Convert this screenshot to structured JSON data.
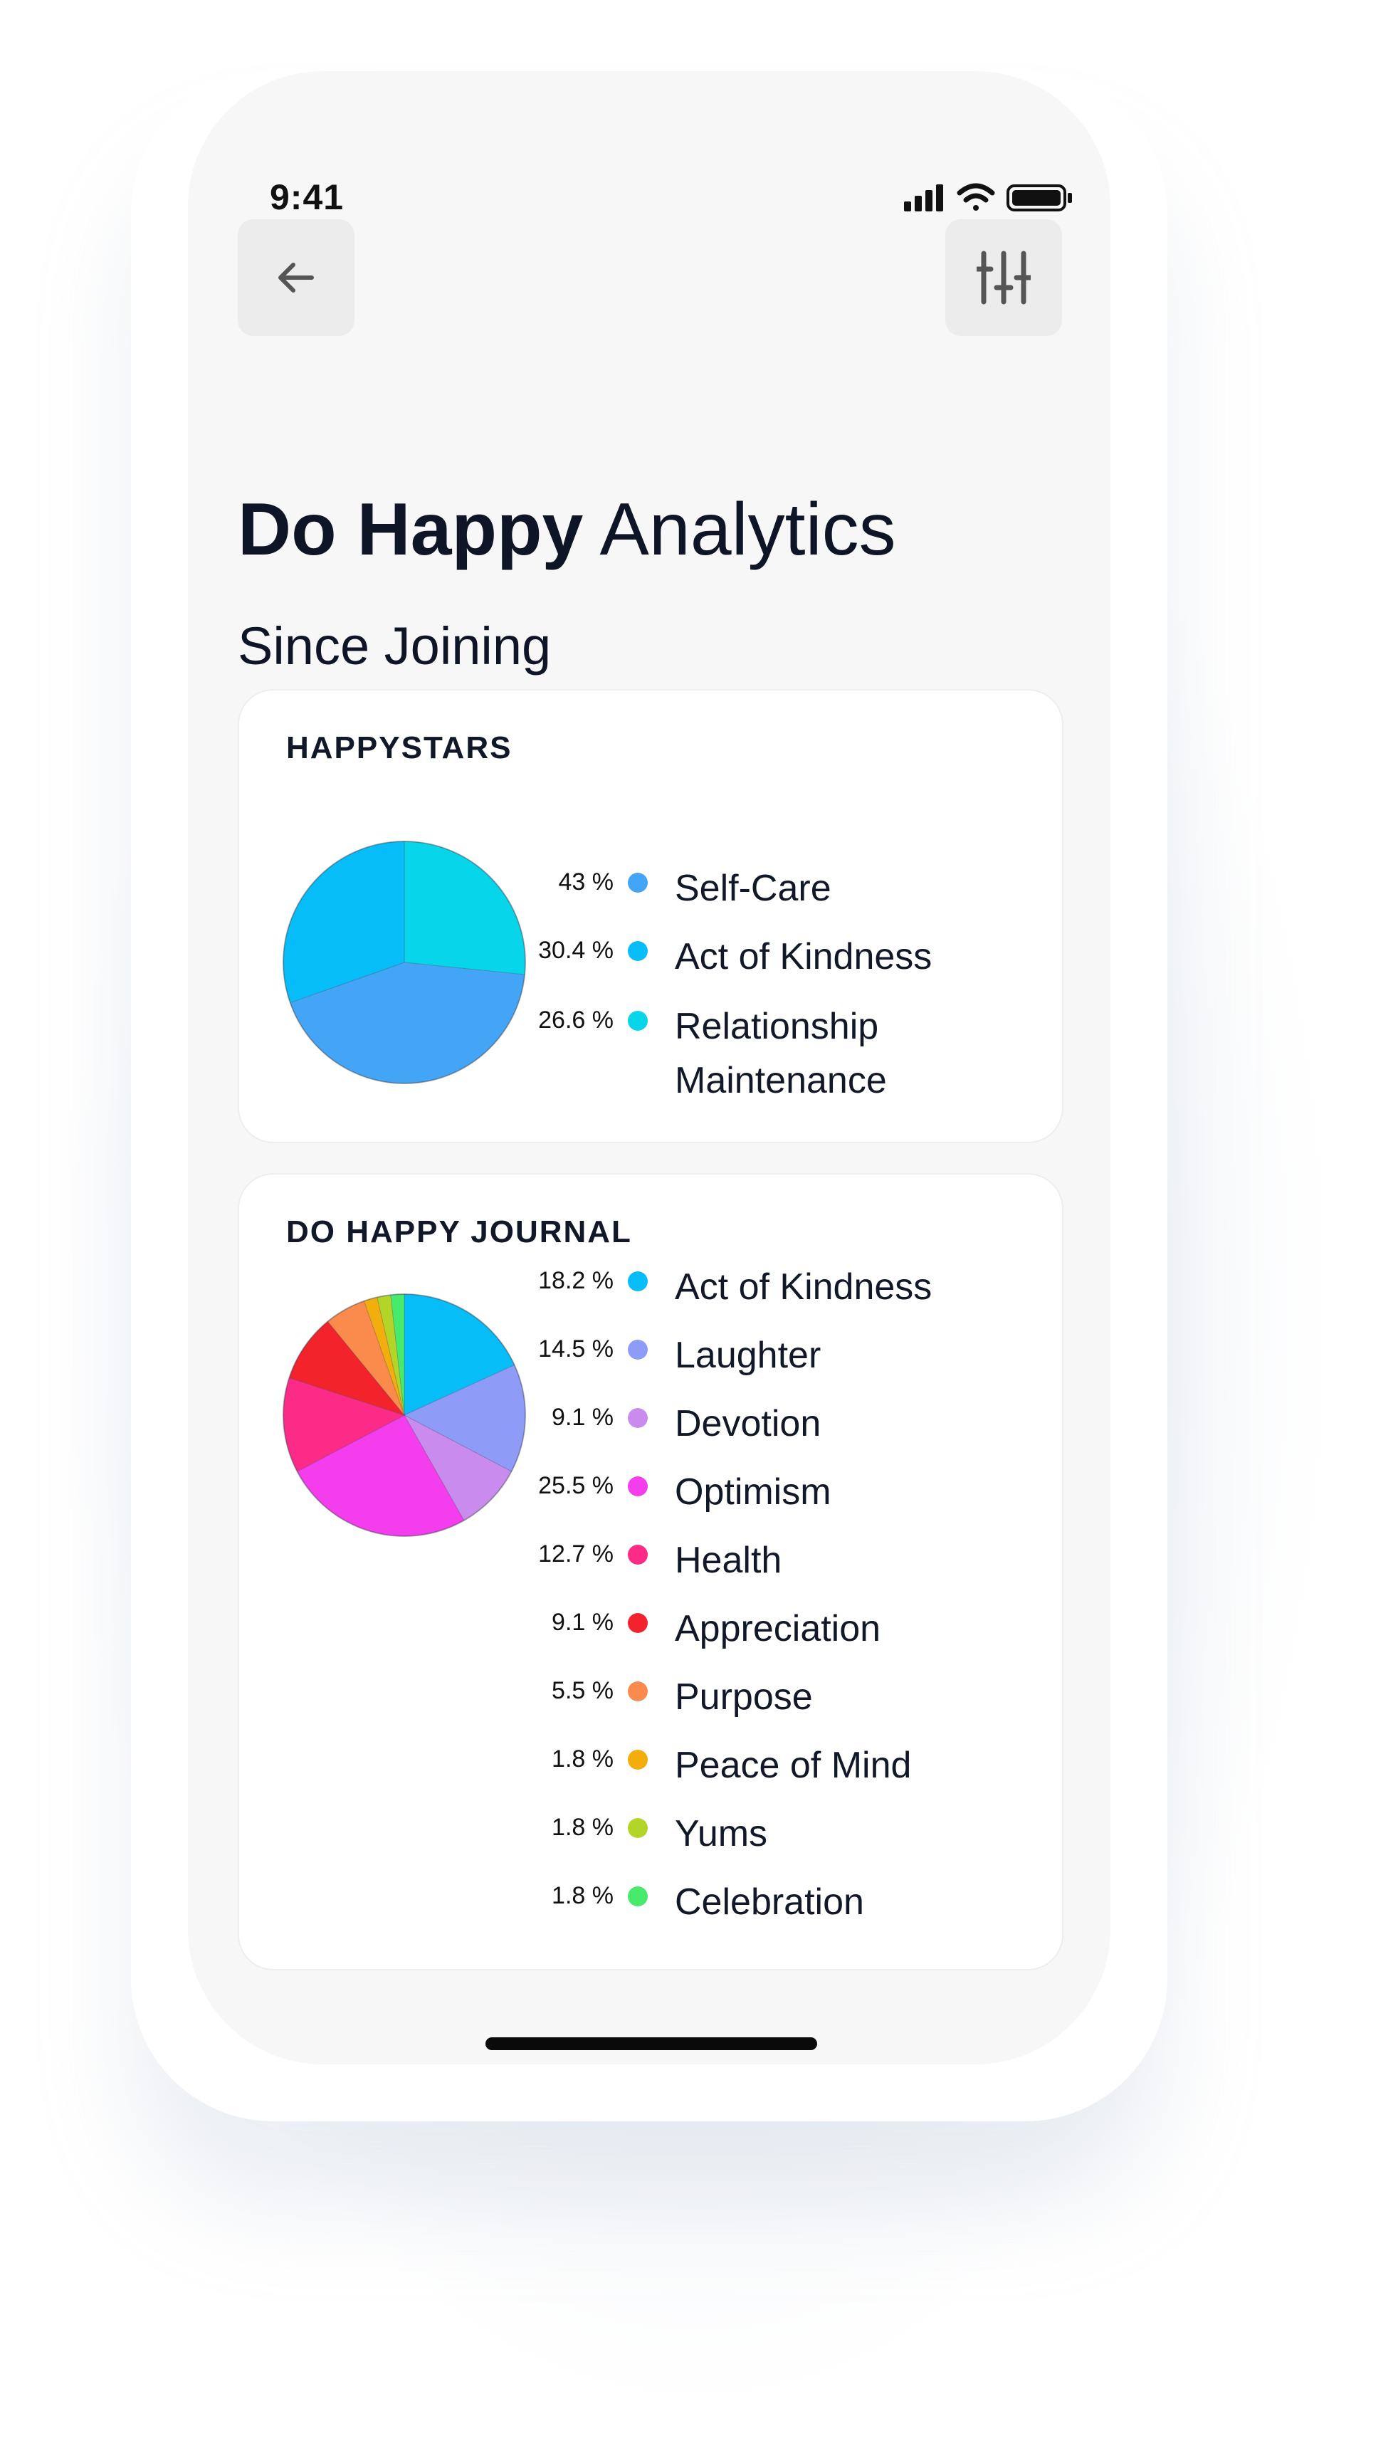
{
  "status_bar": {
    "time": "9:41"
  },
  "header": {
    "back_icon": "arrow-left-icon",
    "filter_icon": "sliders-icon",
    "title_bold": "Do Happy",
    "title_light": "Analytics",
    "subtitle": "Since Joining"
  },
  "cards": [
    {
      "title": "HAPPYSTARS",
      "items": [
        {
          "pct": "43 %",
          "label": "Self-Care",
          "color": "#44a4f5"
        },
        {
          "pct": "30.4 %",
          "label": "Act of Kindness",
          "color": "#06bdf7"
        },
        {
          "pct": "26.6 %",
          "label": "Relationship Maintenance",
          "color": "#07d6ea"
        }
      ]
    },
    {
      "title": "DO HAPPY JOURNAL",
      "items": [
        {
          "pct": "18.2 %",
          "label": "Act of Kindness",
          "color": "#06bdf7"
        },
        {
          "pct": "14.5 %",
          "label": "Laughter",
          "color": "#8e9cf8"
        },
        {
          "pct": "9.1 %",
          "label": "Devotion",
          "color": "#c98cee"
        },
        {
          "pct": "25.5 %",
          "label": "Optimism",
          "color": "#f43ded"
        },
        {
          "pct": "12.7 %",
          "label": "Health",
          "color": "#fb2b87"
        },
        {
          "pct": "9.1 %",
          "label": "Appreciation",
          "color": "#f2232b"
        },
        {
          "pct": "5.5 %",
          "label": "Purpose",
          "color": "#fb8b4c"
        },
        {
          "pct": "1.8 %",
          "label": "Peace of Mind",
          "color": "#f1ae0c"
        },
        {
          "pct": "1.8 %",
          "label": "Yums",
          "color": "#b3d52a"
        },
        {
          "pct": "1.8 %",
          "label": "Celebration",
          "color": "#47ea6c"
        }
      ]
    }
  ],
  "chart_data": [
    {
      "type": "pie",
      "title": "HAPPYSTARS",
      "categories": [
        "Relationship Maintenance",
        "Self-Care",
        "Act of Kindness"
      ],
      "values": [
        26.6,
        43,
        30.4
      ],
      "colors": [
        "#07d6ea",
        "#44a4f5",
        "#06bdf7"
      ]
    },
    {
      "type": "pie",
      "title": "DO HAPPY JOURNAL",
      "categories": [
        "Act of Kindness",
        "Laughter",
        "Devotion",
        "Optimism",
        "Health",
        "Appreciation",
        "Purpose",
        "Peace of Mind",
        "Yums",
        "Celebration"
      ],
      "values": [
        18.2,
        14.5,
        9.1,
        25.5,
        12.7,
        9.1,
        5.5,
        1.8,
        1.8,
        1.8
      ],
      "colors": [
        "#06bdf7",
        "#8e9cf8",
        "#c98cee",
        "#f43ded",
        "#fb2b87",
        "#f2232b",
        "#fb8b4c",
        "#f1ae0c",
        "#b3d52a",
        "#47ea6c"
      ]
    }
  ]
}
